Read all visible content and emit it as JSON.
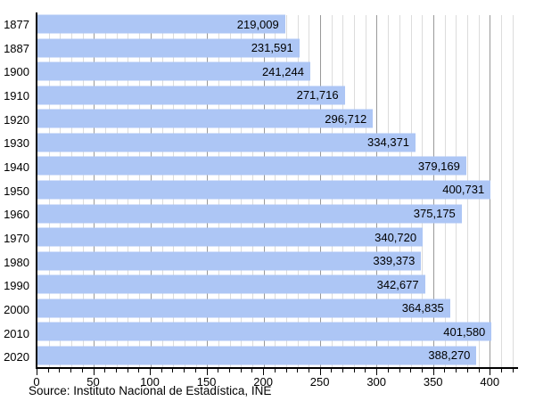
{
  "chart_data": {
    "type": "bar",
    "orientation": "horizontal",
    "title": "",
    "xlabel": "",
    "ylabel": "",
    "grid": true,
    "legend": false,
    "categories": [
      "1877",
      "1887",
      "1900",
      "1910",
      "1920",
      "1930",
      "1940",
      "1950",
      "1960",
      "1970",
      "1980",
      "1990",
      "2000",
      "2010",
      "2020"
    ],
    "values": [
      219009,
      231591,
      241244,
      271716,
      296712,
      334371,
      379169,
      400731,
      375175,
      340720,
      339373,
      342677,
      364835,
      401580,
      388270
    ],
    "value_labels": [
      "219,009",
      "231,591",
      "241,244",
      "271,716",
      "296,712",
      "334,371",
      "379,169",
      "400,731",
      "375,175",
      "340,720",
      "339,373",
      "342,677",
      "364,835",
      "401,580",
      "388,270"
    ],
    "x_tick_labels": [
      "0",
      "50",
      "100",
      "150",
      "200",
      "250",
      "300",
      "350",
      "400"
    ],
    "x_major_step": 50,
    "x_minor_step": 10,
    "x_max": 425,
    "axis_unit_divisor": 1000
  },
  "source_note": "Source: Instituto Nacional de Estadística, INE",
  "colors": {
    "bar": "#ADC6F5",
    "minor_grid": "#DCDCDC",
    "major_grid": "#999999",
    "axis": "#000000",
    "text": "#000000",
    "background": "#FFFFFF"
  }
}
